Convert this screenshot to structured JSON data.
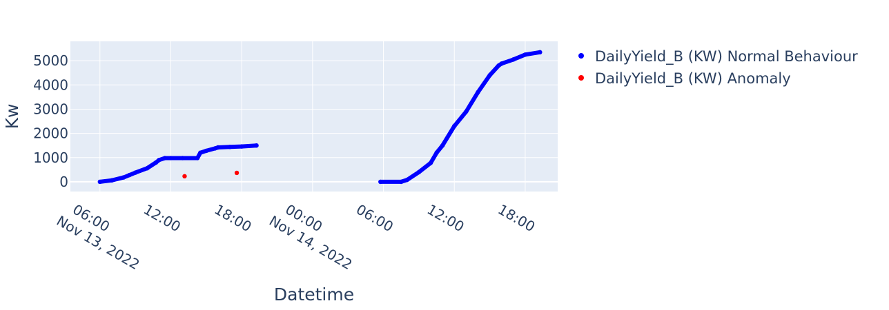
{
  "chart_data": {
    "type": "scatter",
    "xlabel": "Datetime",
    "ylabel": "Kw",
    "x_range": [
      "2022-11-13T03:30",
      "2022-11-14T20:45"
    ],
    "ylim": [
      -400,
      5800
    ],
    "grid": true,
    "legend_position": "top-right",
    "x_ticks": [
      {
        "value": "2022-11-13T06:00",
        "label": "06:00",
        "sublabel": "Nov 13, 2022"
      },
      {
        "value": "2022-11-13T12:00",
        "label": "12:00",
        "sublabel": ""
      },
      {
        "value": "2022-11-13T18:00",
        "label": "18:00",
        "sublabel": ""
      },
      {
        "value": "2022-11-14T00:00",
        "label": "00:00",
        "sublabel": "Nov 14, 2022"
      },
      {
        "value": "2022-11-14T06:00",
        "label": "06:00",
        "sublabel": ""
      },
      {
        "value": "2022-11-14T12:00",
        "label": "12:00",
        "sublabel": ""
      },
      {
        "value": "2022-11-14T18:00",
        "label": "18:00",
        "sublabel": ""
      }
    ],
    "y_ticks": [
      0,
      1000,
      2000,
      3000,
      4000,
      5000
    ],
    "series": [
      {
        "name": "DailyYield_B (KW) Normal Behaviour",
        "color": "#0000ff",
        "x": [
          "2022-11-13T06:00",
          "2022-11-13T07:00",
          "2022-11-13T08:00",
          "2022-11-13T08:30",
          "2022-11-13T09:00",
          "2022-11-13T10:00",
          "2022-11-13T10:45",
          "2022-11-13T11:00",
          "2022-11-13T11:30",
          "2022-11-13T12:00",
          "2022-11-13T13:00",
          "2022-11-13T14:15",
          "2022-11-13T14:30",
          "2022-11-13T15:00",
          "2022-11-13T15:45",
          "2022-11-13T16:00",
          "2022-11-13T17:00",
          "2022-11-13T18:00",
          "2022-11-13T19:15",
          "2022-11-14T05:45",
          "2022-11-14T07:30",
          "2022-11-14T08:00",
          "2022-11-14T09:00",
          "2022-11-14T10:00",
          "2022-11-14T10:30",
          "2022-11-14T11:00",
          "2022-11-14T12:00",
          "2022-11-14T13:00",
          "2022-11-14T14:00",
          "2022-11-14T15:00",
          "2022-11-14T15:45",
          "2022-11-14T16:00",
          "2022-11-14T17:00",
          "2022-11-14T18:00",
          "2022-11-14T19:15"
        ],
        "y": [
          0,
          60,
          180,
          280,
          380,
          560,
          800,
          900,
          980,
          980,
          980,
          980,
          1200,
          1280,
          1380,
          1420,
          1440,
          1460,
          1500,
          0,
          0,
          80,
          400,
          780,
          1200,
          1500,
          2300,
          2900,
          3700,
          4400,
          4800,
          4880,
          5050,
          5250,
          5350
        ]
      },
      {
        "name": "DailyYield_B (KW) Anomaly",
        "color": "#ff0000",
        "x": [
          "2022-11-13T13:10",
          "2022-11-13T17:35"
        ],
        "y": [
          230,
          370
        ]
      }
    ]
  }
}
